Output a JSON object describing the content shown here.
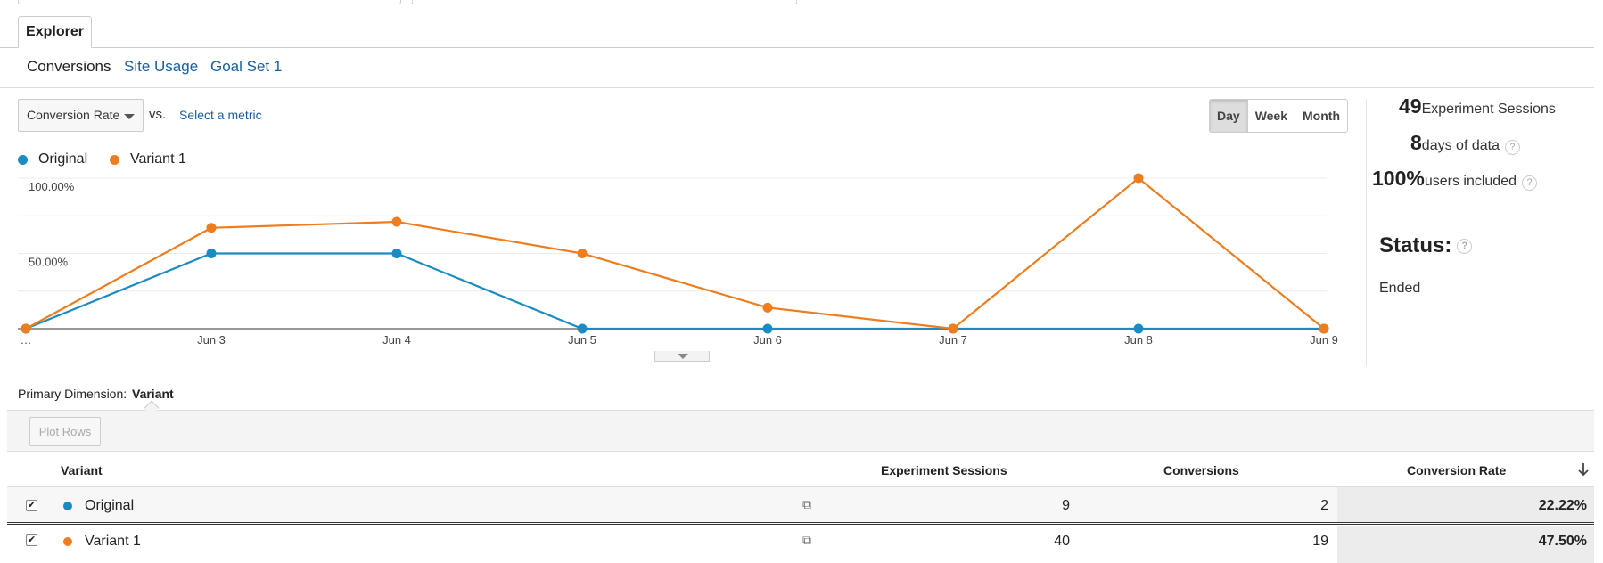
{
  "tabs": {
    "explorer": "Explorer"
  },
  "subtabs": [
    {
      "label": "Conversions",
      "active": true
    },
    {
      "label": "Site Usage",
      "active": false
    },
    {
      "label": "Goal Set 1",
      "active": false
    }
  ],
  "controls": {
    "metric_selected": "Conversion Rate",
    "vs_label": "vs.",
    "select_metric_link": "Select a metric",
    "periods": [
      "Day",
      "Week",
      "Month"
    ],
    "active_period": "Day"
  },
  "legend": [
    {
      "name": "Original",
      "color": "#1a8bc3"
    },
    {
      "name": "Variant 1",
      "color": "#ed7d1e"
    }
  ],
  "chart_data": {
    "type": "line",
    "x": [
      "…",
      "Jun 3",
      "Jun 4",
      "Jun 5",
      "Jun 6",
      "Jun 7",
      "Jun 8",
      "Jun 9"
    ],
    "y_tick_labels": [
      "100.00%",
      "50.00%"
    ],
    "ylim": [
      0,
      100
    ],
    "grid": true,
    "series": [
      {
        "name": "Original",
        "color": "#1a8bc3",
        "values": [
          0,
          50,
          50,
          0,
          0,
          0,
          0,
          0
        ]
      },
      {
        "name": "Variant 1",
        "color": "#ed7d1e",
        "values": [
          0,
          67,
          71,
          50,
          14,
          0,
          100,
          0
        ]
      }
    ]
  },
  "stats": {
    "sessions_value": "49",
    "sessions_label": "Experiment Sessions",
    "days_value": "8",
    "days_label": "days of data",
    "users_value": "100%",
    "users_label": "users included",
    "help_glyph": "?"
  },
  "status": {
    "title": "Status:",
    "value": "Ended"
  },
  "dimension": {
    "label": "Primary Dimension:",
    "value": "Variant"
  },
  "table": {
    "plot_rows_label": "Plot Rows",
    "headers": [
      "Variant",
      "Experiment Sessions",
      "Conversions",
      "Conversion Rate"
    ],
    "sort_icon": "arrow-down-icon",
    "rows": [
      {
        "variant": "Original",
        "color": "#1a8bc3",
        "checked": true,
        "sessions": "9",
        "conversions": "2",
        "rate": "22.22%"
      },
      {
        "variant": "Variant 1",
        "color": "#ed7d1e",
        "checked": true,
        "sessions": "40",
        "conversions": "19",
        "rate": "47.50%"
      }
    ]
  }
}
